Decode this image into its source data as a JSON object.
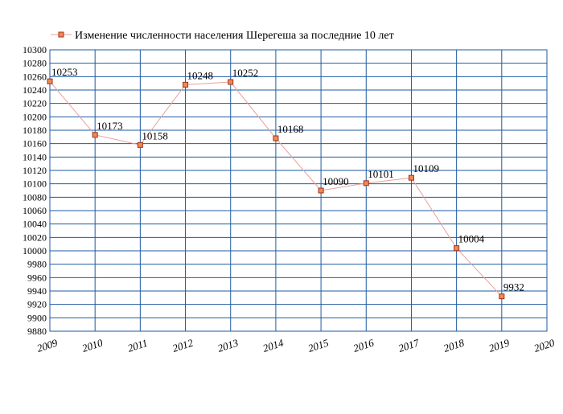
{
  "chart_data": {
    "type": "line",
    "legend_label": "Изменение численности населения Шерегеша за последние 10 лет",
    "legend_placement": "top-left",
    "grid": true,
    "x_ticks": [
      "2009",
      "2010",
      "2011",
      "2012",
      "2013",
      "2014",
      "2015",
      "2016",
      "2017",
      "2018",
      "2019",
      "2020"
    ],
    "xlim": [
      2009,
      2020
    ],
    "ylim": [
      9880,
      10300
    ],
    "y_tick_step": 20,
    "series": [
      {
        "name": "Изменение численности населения Шерегеша за последние 10 лет",
        "x": [
          2009,
          2010,
          2011,
          2012,
          2013,
          2014,
          2015,
          2016,
          2017,
          2018,
          2019
        ],
        "values": [
          10253,
          10173,
          10158,
          10248,
          10252,
          10168,
          10090,
          10101,
          10109,
          10004,
          9932
        ],
        "labels": [
          "10253",
          "10173",
          "10158",
          "10248",
          "10252",
          "10168",
          "10090",
          "10101",
          "10109",
          "10004",
          "9932"
        ]
      }
    ],
    "colors": {
      "line": "#e8a09a",
      "marker_fill": "#f08a50",
      "marker_stroke": "#a0301c",
      "grid": "#1e5aa0"
    }
  }
}
